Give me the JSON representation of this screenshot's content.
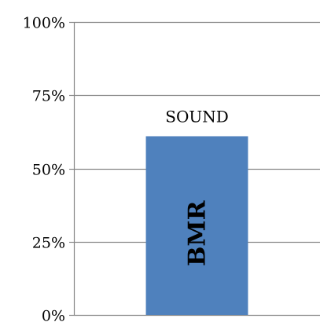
{
  "chart_data": {
    "type": "bar",
    "categories": [
      ""
    ],
    "series": [
      {
        "values": [
          0.61
        ],
        "color": "#4f81bd"
      }
    ],
    "data_labels": [
      "SOUND"
    ],
    "bar_inner_labels": [
      "BMR"
    ],
    "ylim": [
      0,
      1
    ],
    "y_ticks": [
      0,
      0.25,
      0.5,
      0.75,
      1
    ],
    "y_tick_labels": [
      "0%",
      "25%",
      "50%",
      "75%",
      "100%"
    ],
    "grid": true,
    "legend": "none",
    "gridline_color": "#868686"
  }
}
